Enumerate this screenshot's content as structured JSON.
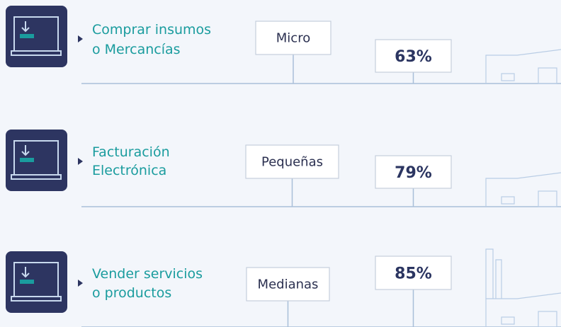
{
  "rows": [
    {
      "action": [
        "Comprar insumos",
        "o Mercancías"
      ],
      "size": "Micro",
      "percent": "63%"
    },
    {
      "action": [
        "Facturación",
        "Electrónica"
      ],
      "size": "Pequeñas",
      "percent": "79%"
    },
    {
      "action": [
        "Vender servicios",
        "o productos"
      ],
      "size": "Medianas",
      "percent": "85%"
    }
  ]
}
